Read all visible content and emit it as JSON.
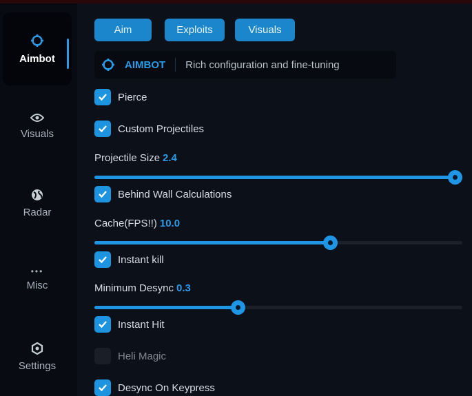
{
  "sidebar": {
    "items": [
      {
        "label": "Aimbot",
        "icon": "crosshair-icon",
        "active": true
      },
      {
        "label": "Visuals",
        "icon": "eye-icon"
      },
      {
        "label": "Radar",
        "icon": "globe-icon"
      },
      {
        "label": "Misc",
        "icon": "more-dots-icon"
      },
      {
        "label": "Settings",
        "icon": "gear-icon"
      }
    ]
  },
  "tabs": [
    "Aim",
    "Exploits",
    "Visuals"
  ],
  "header": {
    "title": "AIMBOT",
    "description": "Rich configuration and fine-tuning",
    "icon": "crosshair-icon"
  },
  "options": {
    "pierce": {
      "label": "Pierce",
      "checked": true
    },
    "custom_projectiles": {
      "label": "Custom Projectiles",
      "checked": true
    },
    "projectile_size": {
      "label": "Projectile Size",
      "value": "2.4",
      "fill": 0.98
    },
    "behind_wall": {
      "label": "Behind Wall Calculations",
      "checked": true
    },
    "cache": {
      "label": "Cache(FPS!!)",
      "value": "10.0",
      "fill": 0.64
    },
    "instant_kill": {
      "label": "Instant kill",
      "checked": true
    },
    "min_desync": {
      "label": "Minimum Desync",
      "value": "0.3",
      "fill": 0.39
    },
    "instant_hit": {
      "label": "Instant Hit",
      "checked": true
    },
    "heli_magic": {
      "label": "Heli Magic",
      "checked": false
    },
    "desync_keypress": {
      "label": "Desync On Keypress",
      "checked": true
    }
  },
  "colors": {
    "accent": "#1e96e3",
    "background": "#0c1019"
  }
}
